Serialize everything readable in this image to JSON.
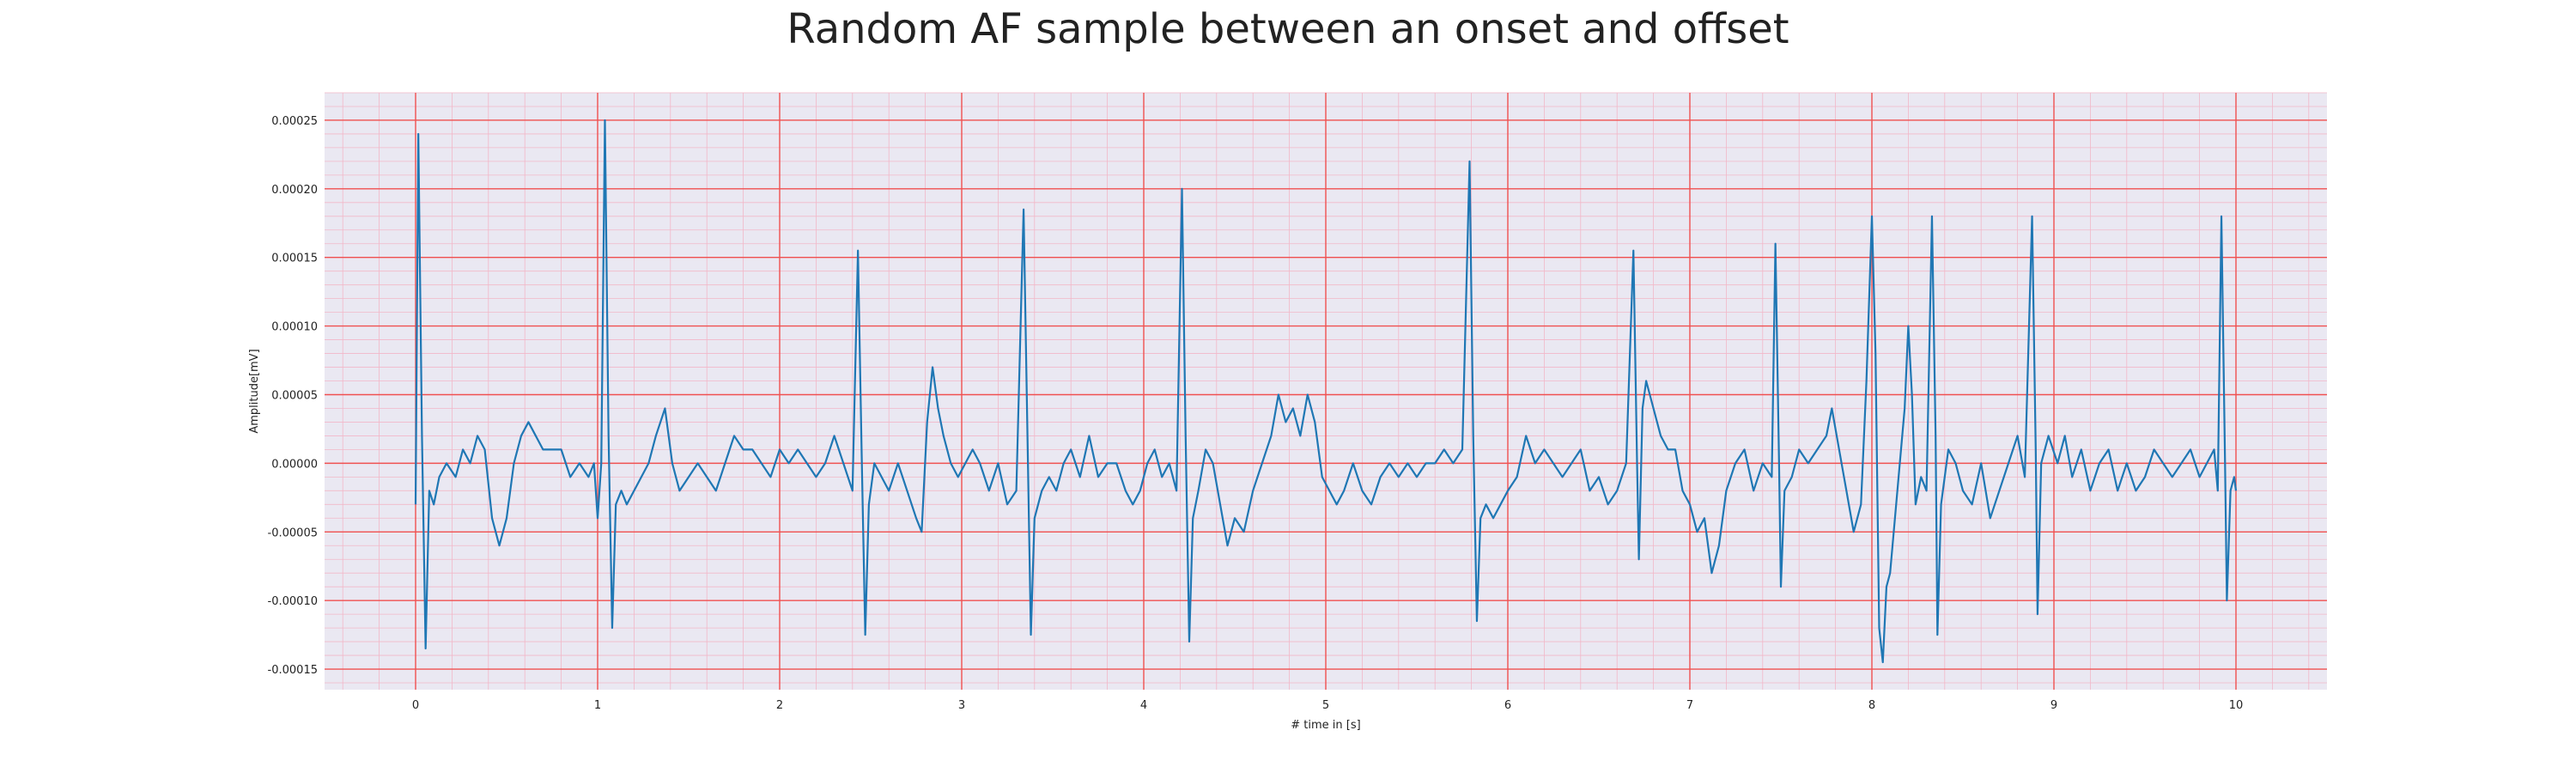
{
  "chart_data": {
    "type": "line",
    "title": "Random AF sample between an onset and offset",
    "xlabel": "# time in [s]",
    "ylabel": "Amplitude[mV]",
    "xlim": [
      -0.5,
      10.5
    ],
    "ylim": [
      -0.000165,
      0.00027
    ],
    "x_ticks": [
      0,
      1,
      2,
      3,
      4,
      5,
      6,
      7,
      8,
      9,
      10
    ],
    "x_tick_labels": [
      "0",
      "1",
      "2",
      "3",
      "4",
      "5",
      "6",
      "7",
      "8",
      "9",
      "10"
    ],
    "y_ticks": [
      -0.00015,
      -0.0001,
      -5e-05,
      0.0,
      5e-05,
      0.0001,
      0.00015,
      0.0002,
      0.00025
    ],
    "y_tick_labels": [
      "-0.00015",
      "-0.00010",
      "-0.00005",
      "0.00000",
      "0.00005",
      "0.00010",
      "0.00015",
      "0.00020",
      "0.00025"
    ],
    "grid": "major red, minor pink (ECG paper)",
    "colors": {
      "background": "#eae8f2",
      "major_grid": "#f05050",
      "minor_grid": "#f2b7c8",
      "line": "#1f77b4"
    },
    "series": [
      {
        "name": "",
        "color": "#1f77b4",
        "points": [
          [
            0.0,
            -3e-05
          ],
          [
            0.015,
            0.00024
          ],
          [
            0.035,
            2e-05
          ],
          [
            0.055,
            -0.000135
          ],
          [
            0.075,
            -2e-05
          ],
          [
            0.1,
            -3e-05
          ],
          [
            0.13,
            -1e-05
          ],
          [
            0.17,
            0.0
          ],
          [
            0.22,
            -1e-05
          ],
          [
            0.26,
            1e-05
          ],
          [
            0.3,
            0.0
          ],
          [
            0.34,
            2e-05
          ],
          [
            0.38,
            1e-05
          ],
          [
            0.42,
            -4e-05
          ],
          [
            0.46,
            -6e-05
          ],
          [
            0.5,
            -4e-05
          ],
          [
            0.54,
            0.0
          ],
          [
            0.58,
            2e-05
          ],
          [
            0.62,
            3e-05
          ],
          [
            0.66,
            2e-05
          ],
          [
            0.7,
            1e-05
          ],
          [
            0.75,
            1e-05
          ],
          [
            0.8,
            1e-05
          ],
          [
            0.85,
            -1e-05
          ],
          [
            0.9,
            0.0
          ],
          [
            0.95,
            -1e-05
          ],
          [
            0.98,
            0.0
          ],
          [
            1.0,
            -4e-05
          ],
          [
            1.02,
            0.0
          ],
          [
            1.04,
            0.00025
          ],
          [
            1.06,
            2e-05
          ],
          [
            1.08,
            -0.00012
          ],
          [
            1.1,
            -3e-05
          ],
          [
            1.13,
            -2e-05
          ],
          [
            1.16,
            -3e-05
          ],
          [
            1.2,
            -2e-05
          ],
          [
            1.24,
            -1e-05
          ],
          [
            1.28,
            0.0
          ],
          [
            1.32,
            2e-05
          ],
          [
            1.37,
            4e-05
          ],
          [
            1.41,
            0.0
          ],
          [
            1.45,
            -2e-05
          ],
          [
            1.5,
            -1e-05
          ],
          [
            1.55,
            0.0
          ],
          [
            1.6,
            -1e-05
          ],
          [
            1.65,
            -2e-05
          ],
          [
            1.7,
            0.0
          ],
          [
            1.75,
            2e-05
          ],
          [
            1.8,
            1e-05
          ],
          [
            1.85,
            1e-05
          ],
          [
            1.9,
            0.0
          ],
          [
            1.95,
            -1e-05
          ],
          [
            2.0,
            1e-05
          ],
          [
            2.05,
            0.0
          ],
          [
            2.1,
            1e-05
          ],
          [
            2.15,
            0.0
          ],
          [
            2.2,
            -1e-05
          ],
          [
            2.25,
            0.0
          ],
          [
            2.3,
            2e-05
          ],
          [
            2.35,
            0.0
          ],
          [
            2.4,
            -2e-05
          ],
          [
            2.43,
            0.000155
          ],
          [
            2.45,
            1e-05
          ],
          [
            2.47,
            -0.000125
          ],
          [
            2.49,
            -3e-05
          ],
          [
            2.52,
            0.0
          ],
          [
            2.56,
            -1e-05
          ],
          [
            2.6,
            -2e-05
          ],
          [
            2.65,
            0.0
          ],
          [
            2.7,
            -2e-05
          ],
          [
            2.75,
            -4e-05
          ],
          [
            2.78,
            -5e-05
          ],
          [
            2.81,
            3e-05
          ],
          [
            2.84,
            7e-05
          ],
          [
            2.87,
            4e-05
          ],
          [
            2.9,
            2e-05
          ],
          [
            2.94,
            0.0
          ],
          [
            2.98,
            -1e-05
          ],
          [
            3.02,
            0.0
          ],
          [
            3.06,
            1e-05
          ],
          [
            3.1,
            0.0
          ],
          [
            3.15,
            -2e-05
          ],
          [
            3.2,
            0.0
          ],
          [
            3.25,
            -3e-05
          ],
          [
            3.3,
            -2e-05
          ],
          [
            3.34,
            0.000185
          ],
          [
            3.36,
            3e-05
          ],
          [
            3.38,
            -0.000125
          ],
          [
            3.4,
            -4e-05
          ],
          [
            3.44,
            -2e-05
          ],
          [
            3.48,
            -1e-05
          ],
          [
            3.52,
            -2e-05
          ],
          [
            3.56,
            0.0
          ],
          [
            3.6,
            1e-05
          ],
          [
            3.65,
            -1e-05
          ],
          [
            3.7,
            2e-05
          ],
          [
            3.75,
            -1e-05
          ],
          [
            3.8,
            0.0
          ],
          [
            3.85,
            0.0
          ],
          [
            3.9,
            -2e-05
          ],
          [
            3.94,
            -3e-05
          ],
          [
            3.98,
            -2e-05
          ],
          [
            4.02,
            0.0
          ],
          [
            4.06,
            1e-05
          ],
          [
            4.1,
            -1e-05
          ],
          [
            4.14,
            0.0
          ],
          [
            4.18,
            -2e-05
          ],
          [
            4.21,
            0.0002
          ],
          [
            4.23,
            2e-05
          ],
          [
            4.25,
            -0.00013
          ],
          [
            4.27,
            -4e-05
          ],
          [
            4.3,
            -2e-05
          ],
          [
            4.34,
            1e-05
          ],
          [
            4.38,
            0.0
          ],
          [
            4.42,
            -3e-05
          ],
          [
            4.46,
            -6e-05
          ],
          [
            4.5,
            -4e-05
          ],
          [
            4.55,
            -5e-05
          ],
          [
            4.6,
            -2e-05
          ],
          [
            4.65,
            0.0
          ],
          [
            4.7,
            2e-05
          ],
          [
            4.74,
            5e-05
          ],
          [
            4.78,
            3e-05
          ],
          [
            4.82,
            4e-05
          ],
          [
            4.86,
            2e-05
          ],
          [
            4.9,
            5e-05
          ],
          [
            4.94,
            3e-05
          ],
          [
            4.98,
            -1e-05
          ],
          [
            5.02,
            -2e-05
          ],
          [
            5.06,
            -3e-05
          ],
          [
            5.1,
            -2e-05
          ],
          [
            5.15,
            0.0
          ],
          [
            5.2,
            -2e-05
          ],
          [
            5.25,
            -3e-05
          ],
          [
            5.3,
            -1e-05
          ],
          [
            5.35,
            0.0
          ],
          [
            5.4,
            -1e-05
          ],
          [
            5.45,
            0.0
          ],
          [
            5.5,
            -1e-05
          ],
          [
            5.55,
            0.0
          ],
          [
            5.6,
            0.0
          ],
          [
            5.65,
            1e-05
          ],
          [
            5.7,
            0.0
          ],
          [
            5.75,
            1e-05
          ],
          [
            5.79,
            0.00022
          ],
          [
            5.81,
            2e-05
          ],
          [
            5.83,
            -0.000115
          ],
          [
            5.85,
            -4e-05
          ],
          [
            5.88,
            -3e-05
          ],
          [
            5.92,
            -4e-05
          ],
          [
            5.96,
            -3e-05
          ],
          [
            6.0,
            -2e-05
          ],
          [
            6.05,
            -1e-05
          ],
          [
            6.1,
            2e-05
          ],
          [
            6.15,
            0.0
          ],
          [
            6.2,
            1e-05
          ],
          [
            6.25,
            0.0
          ],
          [
            6.3,
            -1e-05
          ],
          [
            6.35,
            0.0
          ],
          [
            6.4,
            1e-05
          ],
          [
            6.45,
            -2e-05
          ],
          [
            6.5,
            -1e-05
          ],
          [
            6.55,
            -3e-05
          ],
          [
            6.6,
            -2e-05
          ],
          [
            6.65,
            0.0
          ],
          [
            6.69,
            0.000155
          ],
          [
            6.71,
            0.0
          ],
          [
            6.72,
            -7e-05
          ],
          [
            6.74,
            4e-05
          ],
          [
            6.76,
            6e-05
          ],
          [
            6.8,
            4e-05
          ],
          [
            6.84,
            2e-05
          ],
          [
            6.88,
            1e-05
          ],
          [
            6.92,
            1e-05
          ],
          [
            6.96,
            -2e-05
          ],
          [
            7.0,
            -3e-05
          ],
          [
            7.04,
            -5e-05
          ],
          [
            7.08,
            -4e-05
          ],
          [
            7.12,
            -8e-05
          ],
          [
            7.16,
            -6e-05
          ],
          [
            7.2,
            -2e-05
          ],
          [
            7.25,
            0.0
          ],
          [
            7.3,
            1e-05
          ],
          [
            7.35,
            -2e-05
          ],
          [
            7.4,
            0.0
          ],
          [
            7.45,
            -1e-05
          ],
          [
            7.47,
            0.00016
          ],
          [
            7.49,
            0.0
          ],
          [
            7.5,
            -9e-05
          ],
          [
            7.52,
            -2e-05
          ],
          [
            7.56,
            -1e-05
          ],
          [
            7.6,
            1e-05
          ],
          [
            7.65,
            0.0
          ],
          [
            7.7,
            1e-05
          ],
          [
            7.75,
            2e-05
          ],
          [
            7.78,
            4e-05
          ],
          [
            7.82,
            1e-05
          ],
          [
            7.86,
            -2e-05
          ],
          [
            7.9,
            -5e-05
          ],
          [
            7.94,
            -3e-05
          ],
          [
            7.97,
            6e-05
          ],
          [
            8.0,
            0.00018
          ],
          [
            8.02,
            8e-05
          ],
          [
            8.04,
            -0.00012
          ],
          [
            8.06,
            -0.000145
          ],
          [
            8.08,
            -9e-05
          ],
          [
            8.1,
            -8e-05
          ],
          [
            8.14,
            -2e-05
          ],
          [
            8.18,
            4e-05
          ],
          [
            8.2,
            0.0001
          ],
          [
            8.22,
            5e-05
          ],
          [
            8.24,
            -3e-05
          ],
          [
            8.27,
            -1e-05
          ],
          [
            8.3,
            -2e-05
          ],
          [
            8.33,
            0.00018
          ],
          [
            8.35,
            2e-05
          ],
          [
            8.36,
            -0.000125
          ],
          [
            8.38,
            -3e-05
          ],
          [
            8.42,
            1e-05
          ],
          [
            8.46,
            0.0
          ],
          [
            8.5,
            -2e-05
          ],
          [
            8.55,
            -3e-05
          ],
          [
            8.6,
            0.0
          ],
          [
            8.65,
            -4e-05
          ],
          [
            8.7,
            -2e-05
          ],
          [
            8.75,
            0.0
          ],
          [
            8.8,
            2e-05
          ],
          [
            8.84,
            -1e-05
          ],
          [
            8.88,
            0.00018
          ],
          [
            8.9,
            1e-05
          ],
          [
            8.91,
            -0.00011
          ],
          [
            8.93,
            0.0
          ],
          [
            8.97,
            2e-05
          ],
          [
            9.02,
            0.0
          ],
          [
            9.06,
            2e-05
          ],
          [
            9.1,
            -1e-05
          ],
          [
            9.15,
            1e-05
          ],
          [
            9.2,
            -2e-05
          ],
          [
            9.25,
            0.0
          ],
          [
            9.3,
            1e-05
          ],
          [
            9.35,
            -2e-05
          ],
          [
            9.4,
            0.0
          ],
          [
            9.45,
            -2e-05
          ],
          [
            9.5,
            -1e-05
          ],
          [
            9.55,
            1e-05
          ],
          [
            9.6,
            0.0
          ],
          [
            9.65,
            -1e-05
          ],
          [
            9.7,
            0.0
          ],
          [
            9.75,
            1e-05
          ],
          [
            9.8,
            -1e-05
          ],
          [
            9.84,
            0.0
          ],
          [
            9.88,
            1e-05
          ],
          [
            9.9,
            -2e-05
          ],
          [
            9.92,
            0.00018
          ],
          [
            9.94,
            0.0
          ],
          [
            9.95,
            -0.0001
          ],
          [
            9.97,
            -2e-05
          ],
          [
            9.99,
            -1e-05
          ],
          [
            10.0,
            -2e-05
          ]
        ]
      }
    ]
  }
}
